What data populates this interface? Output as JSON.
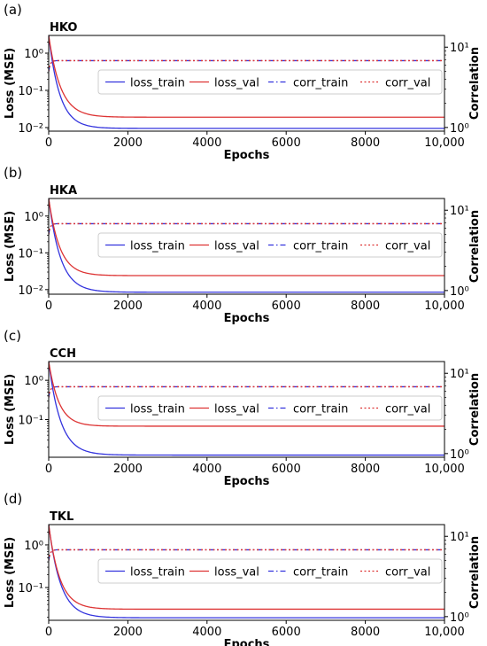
{
  "chart_data": [
    {
      "type": "line",
      "panel_label": "(a)",
      "title": "HKO",
      "xlabel": "Epochs",
      "ylabel": "Loss (MSE)",
      "y2label": "Correlation",
      "xlim": [
        0,
        10000
      ],
      "x_ticks": [
        0,
        2000,
        4000,
        6000,
        8000,
        10000
      ],
      "x_tick_labels": [
        "0",
        "2000",
        "4000",
        "6000",
        "8000",
        "10,000"
      ],
      "yscale": "log",
      "ylim": [
        0.008,
        3.0
      ],
      "y_ticks": [
        1,
        0.1,
        0.01
      ],
      "y_tick_labels": [
        "10⁰",
        "10⁻¹",
        "10⁻²"
      ],
      "y2scale": "log",
      "y2lim": [
        0.9,
        14
      ],
      "y2_ticks": [
        1,
        10
      ],
      "y2_tick_labels": [
        "10⁰",
        "10¹"
      ],
      "legend": [
        "loss_train",
        "loss_val",
        "corr_train",
        "corr_val"
      ],
      "legend_loc": "center-right",
      "series": [
        {
          "name": "loss_train",
          "axis": "left",
          "color": "#3333dd",
          "dash": "solid",
          "start": 3.0,
          "end": 0.0095,
          "tau": 280
        },
        {
          "name": "loss_val",
          "axis": "left",
          "color": "#dd3333",
          "dash": "solid",
          "start": 3.0,
          "end": 0.019,
          "tau": 300
        },
        {
          "name": "corr_train",
          "axis": "right",
          "color": "#3333dd",
          "dash": "dashdot",
          "start": 5.0,
          "end": 6.8,
          "tau": 40
        },
        {
          "name": "corr_val",
          "axis": "right",
          "color": "#dd3333",
          "dash": "dotted",
          "start": 5.0,
          "end": 6.8,
          "tau": 40
        }
      ]
    },
    {
      "type": "line",
      "panel_label": "(b)",
      "title": "HKA",
      "xlabel": "Epochs",
      "ylabel": "Loss (MSE)",
      "y2label": "Correlation",
      "xlim": [
        0,
        10000
      ],
      "x_ticks": [
        0,
        2000,
        4000,
        6000,
        8000,
        10000
      ],
      "x_tick_labels": [
        "0",
        "2000",
        "4000",
        "6000",
        "8000",
        "10,000"
      ],
      "yscale": "log",
      "ylim": [
        0.0075,
        3.0
      ],
      "y_ticks": [
        1,
        0.1,
        0.01
      ],
      "y_tick_labels": [
        "10⁰",
        "10⁻¹",
        "10⁻²"
      ],
      "y2scale": "log",
      "y2lim": [
        0.9,
        14
      ],
      "y2_ticks": [
        1,
        10
      ],
      "y2_tick_labels": [
        "10⁰",
        "10¹"
      ],
      "legend": [
        "loss_train",
        "loss_val",
        "corr_train",
        "corr_val"
      ],
      "legend_loc": "center-right",
      "series": [
        {
          "name": "loss_train",
          "axis": "left",
          "color": "#3333dd",
          "dash": "solid",
          "start": 3.0,
          "end": 0.0085,
          "tau": 300
        },
        {
          "name": "loss_val",
          "axis": "left",
          "color": "#dd3333",
          "dash": "solid",
          "start": 3.0,
          "end": 0.024,
          "tau": 280
        },
        {
          "name": "corr_train",
          "axis": "right",
          "color": "#3333dd",
          "dash": "dashdot",
          "start": 5.0,
          "end": 6.8,
          "tau": 40
        },
        {
          "name": "corr_val",
          "axis": "right",
          "color": "#dd3333",
          "dash": "dotted",
          "start": 5.0,
          "end": 6.8,
          "tau": 40
        }
      ]
    },
    {
      "type": "line",
      "panel_label": "(c)",
      "title": "CCH",
      "xlabel": "Epochs",
      "ylabel": "Loss (MSE)",
      "y2label": "Correlation",
      "xlim": [
        0,
        10000
      ],
      "x_ticks": [
        0,
        2000,
        4000,
        6000,
        8000,
        10000
      ],
      "x_tick_labels": [
        "0",
        "2000",
        "4000",
        "6000",
        "8000",
        "10,000"
      ],
      "yscale": "log",
      "ylim": [
        0.011,
        3.0
      ],
      "y_ticks": [
        1,
        0.1
      ],
      "y_tick_labels": [
        "10⁰",
        "10⁻¹"
      ],
      "y2scale": "log",
      "y2lim": [
        0.9,
        14
      ],
      "y2_ticks": [
        1,
        10
      ],
      "y2_tick_labels": [
        "10⁰",
        "10¹"
      ],
      "legend": [
        "loss_train",
        "loss_val",
        "corr_train",
        "corr_val"
      ],
      "legend_loc": "center-right",
      "series": [
        {
          "name": "loss_train",
          "axis": "left",
          "color": "#3333dd",
          "dash": "solid",
          "start": 3.0,
          "end": 0.0125,
          "tau": 300
        },
        {
          "name": "loss_val",
          "axis": "left",
          "color": "#dd3333",
          "dash": "solid",
          "start": 3.0,
          "end": 0.068,
          "tau": 260
        },
        {
          "name": "corr_train",
          "axis": "right",
          "color": "#3333dd",
          "dash": "dashdot",
          "start": 5.0,
          "end": 6.8,
          "tau": 40
        },
        {
          "name": "corr_val",
          "axis": "right",
          "color": "#dd3333",
          "dash": "dotted",
          "start": 5.0,
          "end": 6.8,
          "tau": 40
        }
      ]
    },
    {
      "type": "line",
      "panel_label": "(d)",
      "title": "TKL",
      "xlabel": "Epochs",
      "ylabel": "Loss (MSE)",
      "y2label": "Correlation",
      "xlim": [
        0,
        10000
      ],
      "x_ticks": [
        0,
        2000,
        4000,
        6000,
        8000,
        10000
      ],
      "x_tick_labels": [
        "0",
        "2000",
        "4000",
        "6000",
        "8000",
        "10,000"
      ],
      "yscale": "log",
      "ylim": [
        0.017,
        3.0
      ],
      "y_ticks": [
        1,
        0.1
      ],
      "y_tick_labels": [
        "10⁰",
        "10⁻¹"
      ],
      "y2scale": "log",
      "y2lim": [
        0.9,
        14
      ],
      "y2_ticks": [
        1,
        10
      ],
      "y2_tick_labels": [
        "10⁰",
        "10¹"
      ],
      "legend": [
        "loss_train",
        "loss_val",
        "corr_train",
        "corr_val"
      ],
      "legend_loc": "center-right",
      "series": [
        {
          "name": "loss_train",
          "axis": "left",
          "color": "#3333dd",
          "dash": "solid",
          "start": 3.0,
          "end": 0.0195,
          "tau": 300
        },
        {
          "name": "loss_val",
          "axis": "left",
          "color": "#dd3333",
          "dash": "solid",
          "start": 3.0,
          "end": 0.031,
          "tau": 280
        },
        {
          "name": "corr_train",
          "axis": "right",
          "color": "#3333dd",
          "dash": "dashdot",
          "start": 5.0,
          "end": 6.8,
          "tau": 40
        },
        {
          "name": "corr_val",
          "axis": "right",
          "color": "#dd3333",
          "dash": "dotted",
          "start": 5.0,
          "end": 6.8,
          "tau": 40
        }
      ]
    }
  ]
}
